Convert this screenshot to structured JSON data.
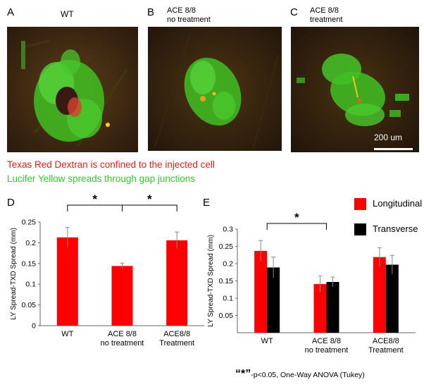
{
  "panels_top": [
    {
      "letter": "A",
      "title_lines": [
        "WT"
      ]
    },
    {
      "letter": "B",
      "title_lines": [
        "ACE 8/8",
        "no treatment"
      ]
    },
    {
      "letter": "C",
      "title_lines": [
        "ACE 8/8",
        "treatment"
      ]
    }
  ],
  "scale_bar_label": "200 um",
  "captions": {
    "red": "Texas Red Dextran is confined to the injected cell",
    "green": "Lucifer Yellow spreads through gap junctions"
  },
  "colors": {
    "red_bar": "#ff0000",
    "black_bar": "#000000",
    "caption_red": "#e41b1b",
    "caption_green": "#2ecc2e"
  },
  "legend": [
    {
      "name": "Longitudinal",
      "color": "#ff0000"
    },
    {
      "name": "Transverse",
      "color": "#000000"
    }
  ],
  "footnote": {
    "star": "“*”",
    "text": "-p<0.05, One-Way ANOVA (Tukey)"
  },
  "significance_marker": "*",
  "chart_data": [
    {
      "panel": "D",
      "type": "bar",
      "ylabel": "LY Spread-TXD Spread (mm)",
      "ylim": [
        0,
        0.25
      ],
      "yticks": [
        "0",
        "0.05",
        "0.1",
        "0.15",
        "0.2",
        "0.25"
      ],
      "categories": [
        [
          "WT"
        ],
        [
          "ACE 8/8",
          "no treatment"
        ],
        [
          "ACE8/8",
          "Treatment"
        ]
      ],
      "series": [
        {
          "values": [
            0.213,
            0.144,
            0.206
          ],
          "errors": [
            0.024,
            0.007,
            0.02
          ]
        }
      ],
      "significance": [
        {
          "from": 0,
          "to": 1,
          "label": "*"
        },
        {
          "from": 1,
          "to": 2,
          "label": "*"
        }
      ]
    },
    {
      "panel": "E",
      "type": "bar",
      "ylabel": "LY Spread-TXD Spread (mm)",
      "ylim": [
        0,
        0.3
      ],
      "yticks": [
        "0.05",
        "0.1",
        "0.15",
        "0.2",
        "0.25",
        "0.3"
      ],
      "categories": [
        [
          "WT"
        ],
        [
          "ACE 8/8",
          "no treatment"
        ],
        [
          "ACE8/8",
          "Treatment"
        ]
      ],
      "series": [
        {
          "name": "Longitudinal",
          "values": [
            0.237,
            0.141,
            0.219
          ],
          "errors": [
            0.03,
            0.023,
            0.027
          ]
        },
        {
          "name": "Transverse",
          "values": [
            0.189,
            0.147,
            0.197
          ],
          "errors": [
            0.03,
            0.014,
            0.027
          ]
        }
      ],
      "significance": [
        {
          "from": 0,
          "to": 1,
          "label": "*"
        }
      ]
    }
  ]
}
